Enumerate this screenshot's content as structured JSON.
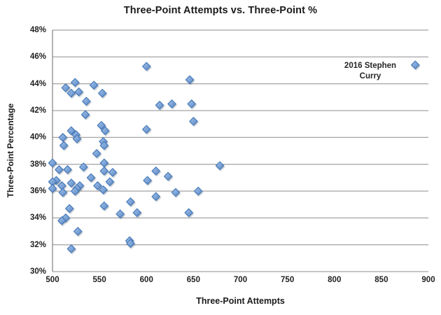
{
  "chart_data": {
    "type": "scatter",
    "title": "Three-Point Attempts vs. Three-Point %",
    "xlabel": "Three-Point Attempts",
    "ylabel": "Three-Point Percentage",
    "xlim": [
      500,
      900
    ],
    "ylim": [
      30,
      48
    ],
    "x_ticks": [
      500,
      550,
      600,
      650,
      700,
      750,
      800,
      850,
      900
    ],
    "y_ticks": [
      30,
      32,
      34,
      36,
      38,
      40,
      42,
      44,
      46,
      48
    ],
    "y_tick_suffix": "%",
    "grid": "horizontal",
    "legend": "none",
    "marker": {
      "shape": "diamond",
      "fill_light": "#a3c2e6",
      "fill_dark": "#5d8dc9",
      "stroke": "#4577b6"
    },
    "grid_color": "#8c8c8c",
    "axis_color": "#808080",
    "annotation": {
      "line1": "2016 Stephen",
      "line2": "Curry",
      "x": 886,
      "y": 45.4
    },
    "points": [
      [
        886,
        45.4
      ],
      [
        600,
        45.3
      ],
      [
        646,
        44.3
      ],
      [
        524,
        44.1
      ],
      [
        544,
        43.9
      ],
      [
        514,
        43.7
      ],
      [
        528,
        43.4
      ],
      [
        520,
        43.3
      ],
      [
        553,
        43.3
      ],
      [
        536,
        42.7
      ],
      [
        627,
        42.5
      ],
      [
        648,
        42.5
      ],
      [
        614,
        42.4
      ],
      [
        535,
        41.7
      ],
      [
        650,
        41.2
      ],
      [
        552,
        40.9
      ],
      [
        600,
        40.6
      ],
      [
        520,
        40.5
      ],
      [
        556,
        40.5
      ],
      [
        525,
        40.2
      ],
      [
        511,
        40.0
      ],
      [
        526,
        39.9
      ],
      [
        554,
        39.7
      ],
      [
        512,
        39.4
      ],
      [
        555,
        39.4
      ],
      [
        547,
        38.8
      ],
      [
        500,
        38.1
      ],
      [
        555,
        38.1
      ],
      [
        678,
        37.9
      ],
      [
        533,
        37.8
      ],
      [
        507,
        37.6
      ],
      [
        516,
        37.6
      ],
      [
        555,
        37.5
      ],
      [
        610,
        37.5
      ],
      [
        564,
        37.4
      ],
      [
        623,
        37.1
      ],
      [
        541,
        37.0
      ],
      [
        504,
        36.8
      ],
      [
        601,
        36.8
      ],
      [
        500,
        36.7
      ],
      [
        561,
        36.7
      ],
      [
        520,
        36.6
      ],
      [
        529,
        36.4
      ],
      [
        548,
        36.4
      ],
      [
        510,
        36.4
      ],
      [
        500,
        36.2
      ],
      [
        526,
        36.2
      ],
      [
        554,
        36.1
      ],
      [
        524,
        36.0
      ],
      [
        655,
        36.0
      ],
      [
        511,
        35.9
      ],
      [
        631,
        35.9
      ],
      [
        610,
        35.6
      ],
      [
        583,
        35.2
      ],
      [
        555,
        34.9
      ],
      [
        518,
        34.7
      ],
      [
        590,
        34.4
      ],
      [
        645,
        34.4
      ],
      [
        572,
        34.3
      ],
      [
        514,
        34.0
      ],
      [
        510,
        33.8
      ],
      [
        527,
        33.0
      ],
      [
        582,
        32.3
      ],
      [
        583,
        32.1
      ],
      [
        520,
        31.7
      ]
    ]
  }
}
